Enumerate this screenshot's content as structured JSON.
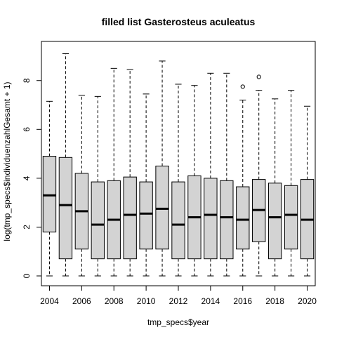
{
  "chart_data": {
    "type": "box",
    "title": "filled list Gasterosteus aculeatus",
    "xlabel": "tmp_specs$year",
    "ylabel": "log(tmp_specs$individuenzahlGesamt + 1)",
    "xlim": [
      2003.5,
      2020.5
    ],
    "ylim": [
      0,
      9.2
    ],
    "grid": false,
    "x_ticks": [
      2004,
      2006,
      2008,
      2010,
      2012,
      2014,
      2016,
      2018,
      2020
    ],
    "x_tick_labels": [
      "2004",
      "2006",
      "2008",
      "2010",
      "2012",
      "2014",
      "2016",
      "2018",
      "2020"
    ],
    "y_ticks": [
      0,
      2,
      4,
      6,
      8
    ],
    "y_tick_labels": [
      "0",
      "2",
      "4",
      "6",
      "8"
    ],
    "colors": {
      "box_fill": "#d3d3d3",
      "line": "#000000",
      "background": "#ffffff"
    },
    "boxes": [
      {
        "year": 2004,
        "min": 0.0,
        "q1": 1.8,
        "median": 3.3,
        "q3": 4.9,
        "max": 7.15,
        "outliers": []
      },
      {
        "year": 2005,
        "min": 0.0,
        "q1": 0.7,
        "median": 2.9,
        "q3": 4.85,
        "max": 9.1,
        "outliers": []
      },
      {
        "year": 2006,
        "min": 0.0,
        "q1": 1.1,
        "median": 2.65,
        "q3": 4.2,
        "max": 7.4,
        "outliers": []
      },
      {
        "year": 2007,
        "min": 0.0,
        "q1": 0.7,
        "median": 2.1,
        "q3": 3.85,
        "max": 7.35,
        "outliers": []
      },
      {
        "year": 2008,
        "min": 0.0,
        "q1": 0.7,
        "median": 2.3,
        "q3": 3.9,
        "max": 8.5,
        "outliers": []
      },
      {
        "year": 2009,
        "min": 0.0,
        "q1": 0.7,
        "median": 2.5,
        "q3": 4.05,
        "max": 8.45,
        "outliers": []
      },
      {
        "year": 2010,
        "min": 0.0,
        "q1": 1.1,
        "median": 2.55,
        "q3": 3.85,
        "max": 7.45,
        "outliers": []
      },
      {
        "year": 2011,
        "min": 0.0,
        "q1": 1.1,
        "median": 2.75,
        "q3": 4.5,
        "max": 8.8,
        "outliers": []
      },
      {
        "year": 2012,
        "min": 0.0,
        "q1": 0.7,
        "median": 2.1,
        "q3": 3.85,
        "max": 7.85,
        "outliers": []
      },
      {
        "year": 2013,
        "min": 0.0,
        "q1": 0.7,
        "median": 2.4,
        "q3": 4.1,
        "max": 7.8,
        "outliers": []
      },
      {
        "year": 2014,
        "min": 0.0,
        "q1": 0.7,
        "median": 2.5,
        "q3": 4.0,
        "max": 8.3,
        "outliers": []
      },
      {
        "year": 2015,
        "min": 0.0,
        "q1": 0.7,
        "median": 2.4,
        "q3": 3.9,
        "max": 8.3,
        "outliers": []
      },
      {
        "year": 2016,
        "min": 0.0,
        "q1": 1.1,
        "median": 2.3,
        "q3": 3.65,
        "max": 7.2,
        "outliers": [
          7.75
        ]
      },
      {
        "year": 2017,
        "min": 0.0,
        "q1": 1.4,
        "median": 2.7,
        "q3": 3.95,
        "max": 7.6,
        "outliers": [
          8.15
        ]
      },
      {
        "year": 2018,
        "min": 0.0,
        "q1": 0.7,
        "median": 2.4,
        "q3": 3.8,
        "max": 7.25,
        "outliers": []
      },
      {
        "year": 2019,
        "min": 0.0,
        "q1": 1.1,
        "median": 2.5,
        "q3": 3.7,
        "max": 7.6,
        "outliers": []
      },
      {
        "year": 2020,
        "min": 0.0,
        "q1": 0.7,
        "median": 2.3,
        "q3": 3.95,
        "max": 6.95,
        "outliers": []
      }
    ]
  }
}
